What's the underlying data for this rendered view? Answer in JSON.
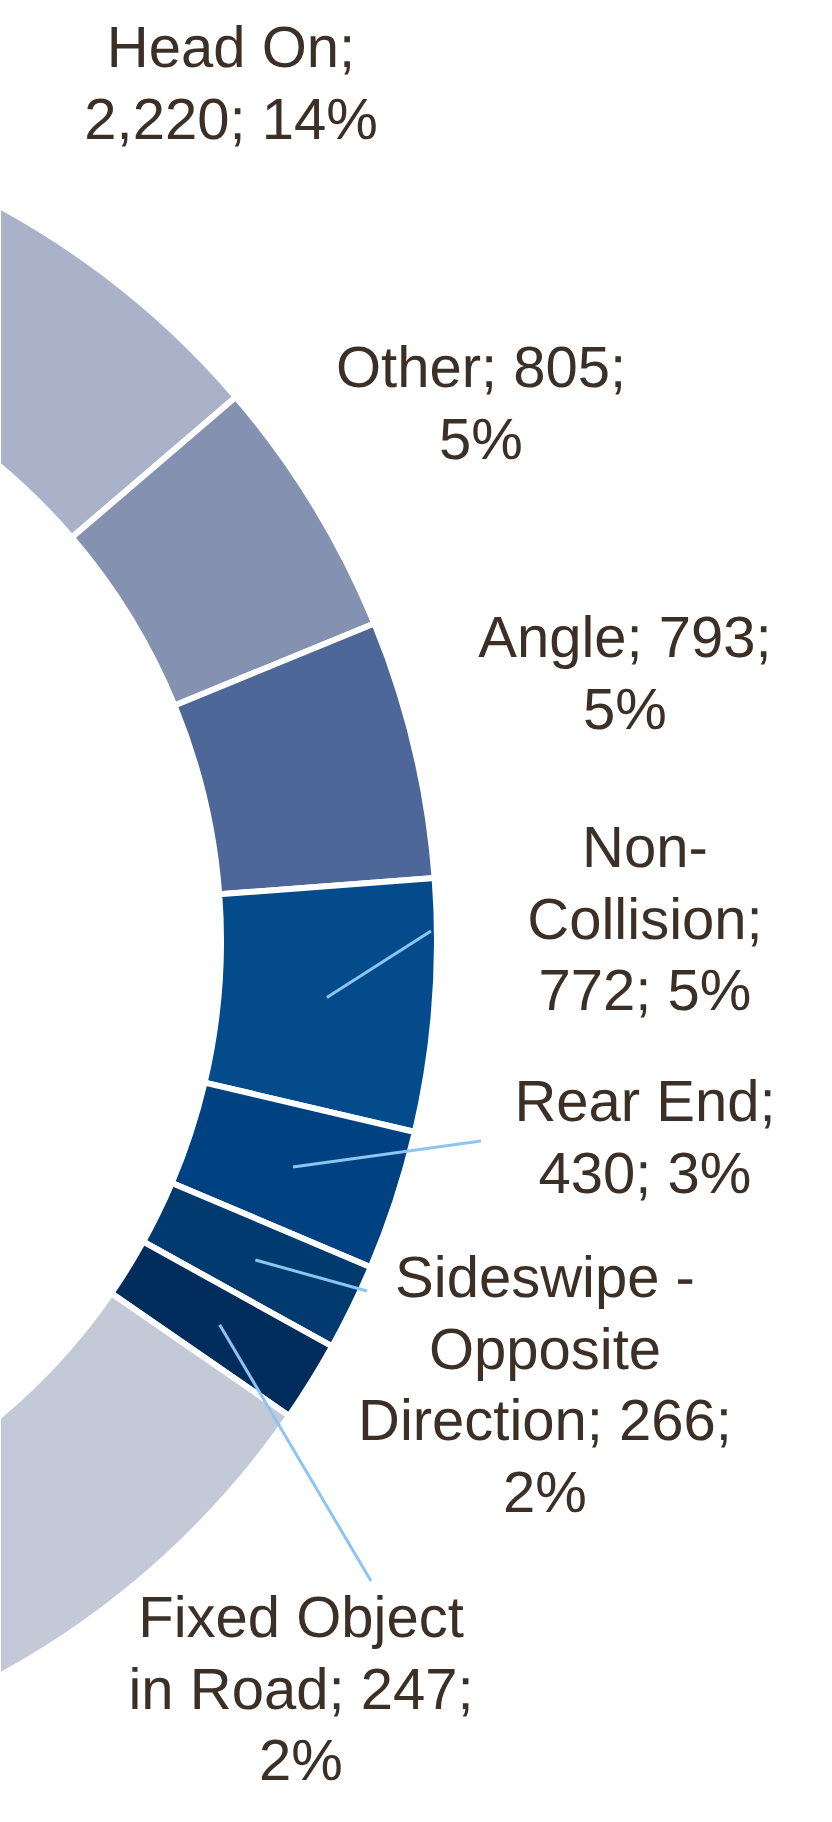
{
  "chart_data": {
    "type": "donut",
    "categories": [
      "Head On",
      "Other",
      "Angle",
      "Non-Collision",
      "Rear End",
      "Sideswipe - Opposite Direction",
      "Fixed Object in Road",
      null
    ],
    "values": [
      2220,
      805,
      793,
      772,
      430,
      266,
      247,
      10324
    ],
    "value_labels": [
      "; 2,220; 14%",
      "; 805; 5%",
      "; 793; 5%",
      "; 772; 5%",
      "; 430; 3%",
      "; 266; 2%",
      "; 247; 2%",
      null
    ],
    "colors": [
      "#a9b2c8",
      "#8591b0",
      "#4d6898",
      "#044b8b",
      "#004281",
      "#003a6f",
      "#002d5c",
      "#c4c9d8"
    ]
  }
}
